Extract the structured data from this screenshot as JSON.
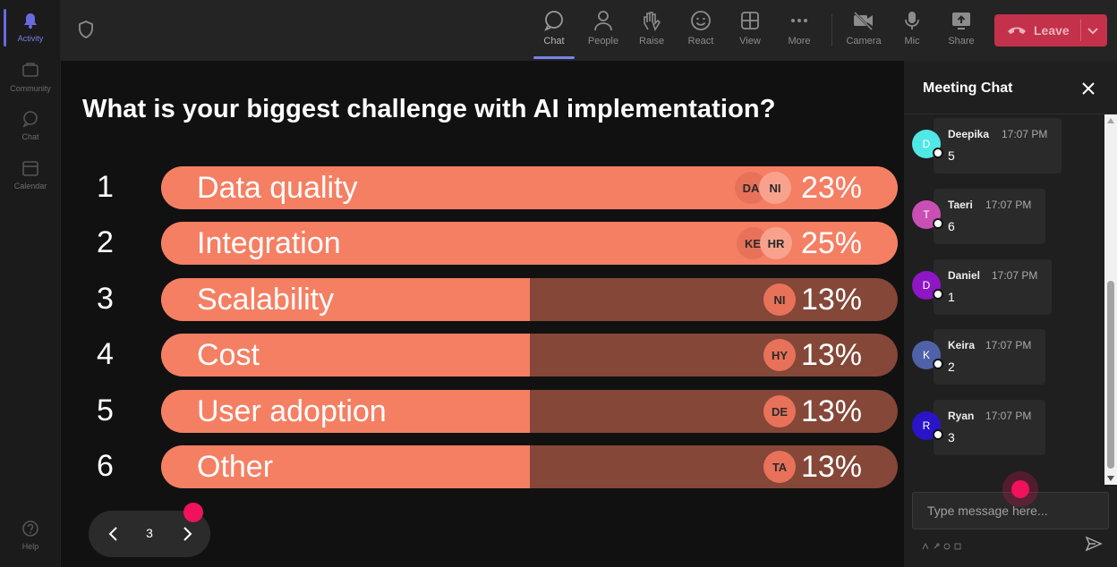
{
  "rail": {
    "items": [
      {
        "label": "Activity",
        "icon": "bell-icon",
        "active": true
      },
      {
        "label": "Community",
        "icon": "community-icon",
        "active": false
      },
      {
        "label": "Chat",
        "icon": "chat-icon",
        "active": false
      },
      {
        "label": "Calendar",
        "icon": "calendar-icon",
        "active": false
      }
    ],
    "help": {
      "label": "Help",
      "icon": "help-icon"
    }
  },
  "toolbar": {
    "chat": "Chat",
    "people": "People",
    "raise": "Raise",
    "react": "React",
    "view": "View",
    "more": "More",
    "camera": "Camera",
    "mic": "Mic",
    "share": "Share",
    "leave": "Leave",
    "accent": "#c4314b"
  },
  "poll": {
    "question": "What is your biggest challenge with AI implementation?",
    "options": [
      {
        "num": "1",
        "label": "Data quality",
        "pct": "23%",
        "value": 23,
        "avatars": [
          "DA",
          "NI"
        ]
      },
      {
        "num": "2",
        "label": "Integration",
        "pct": "25%",
        "value": 25,
        "avatars": [
          "KE",
          "HR"
        ]
      },
      {
        "num": "3",
        "label": "Scalability",
        "pct": "13%",
        "value": 13,
        "avatars": [
          "NI"
        ]
      },
      {
        "num": "4",
        "label": "Cost",
        "pct": "13%",
        "value": 13,
        "avatars": [
          "HY"
        ]
      },
      {
        "num": "5",
        "label": "User adoption",
        "pct": "13%",
        "value": 13,
        "avatars": [
          "DE"
        ]
      },
      {
        "num": "6",
        "label": "Other",
        "pct": "13%",
        "value": 13,
        "avatars": [
          "TA"
        ]
      }
    ],
    "page": "3"
  },
  "chat": {
    "title": "Meeting Chat",
    "messages": [
      {
        "initial": "D",
        "name": "Deepika",
        "time": "17:07 PM",
        "text": "5",
        "color": "#4fe8e6"
      },
      {
        "initial": "T",
        "name": "Taeri",
        "time": "17:07 PM",
        "text": "6",
        "color": "#c94fb4"
      },
      {
        "initial": "D",
        "name": "Daniel",
        "time": "17:07 PM",
        "text": "1",
        "color": "#8e16c4"
      },
      {
        "initial": "K",
        "name": "Keira",
        "time": "17:07 PM",
        "text": "2",
        "color": "#4f62a8"
      },
      {
        "initial": "R",
        "name": "Ryan",
        "time": "17:07 PM",
        "text": "3",
        "color": "#2a14c8"
      }
    ],
    "placeholder": "Type message here..."
  }
}
